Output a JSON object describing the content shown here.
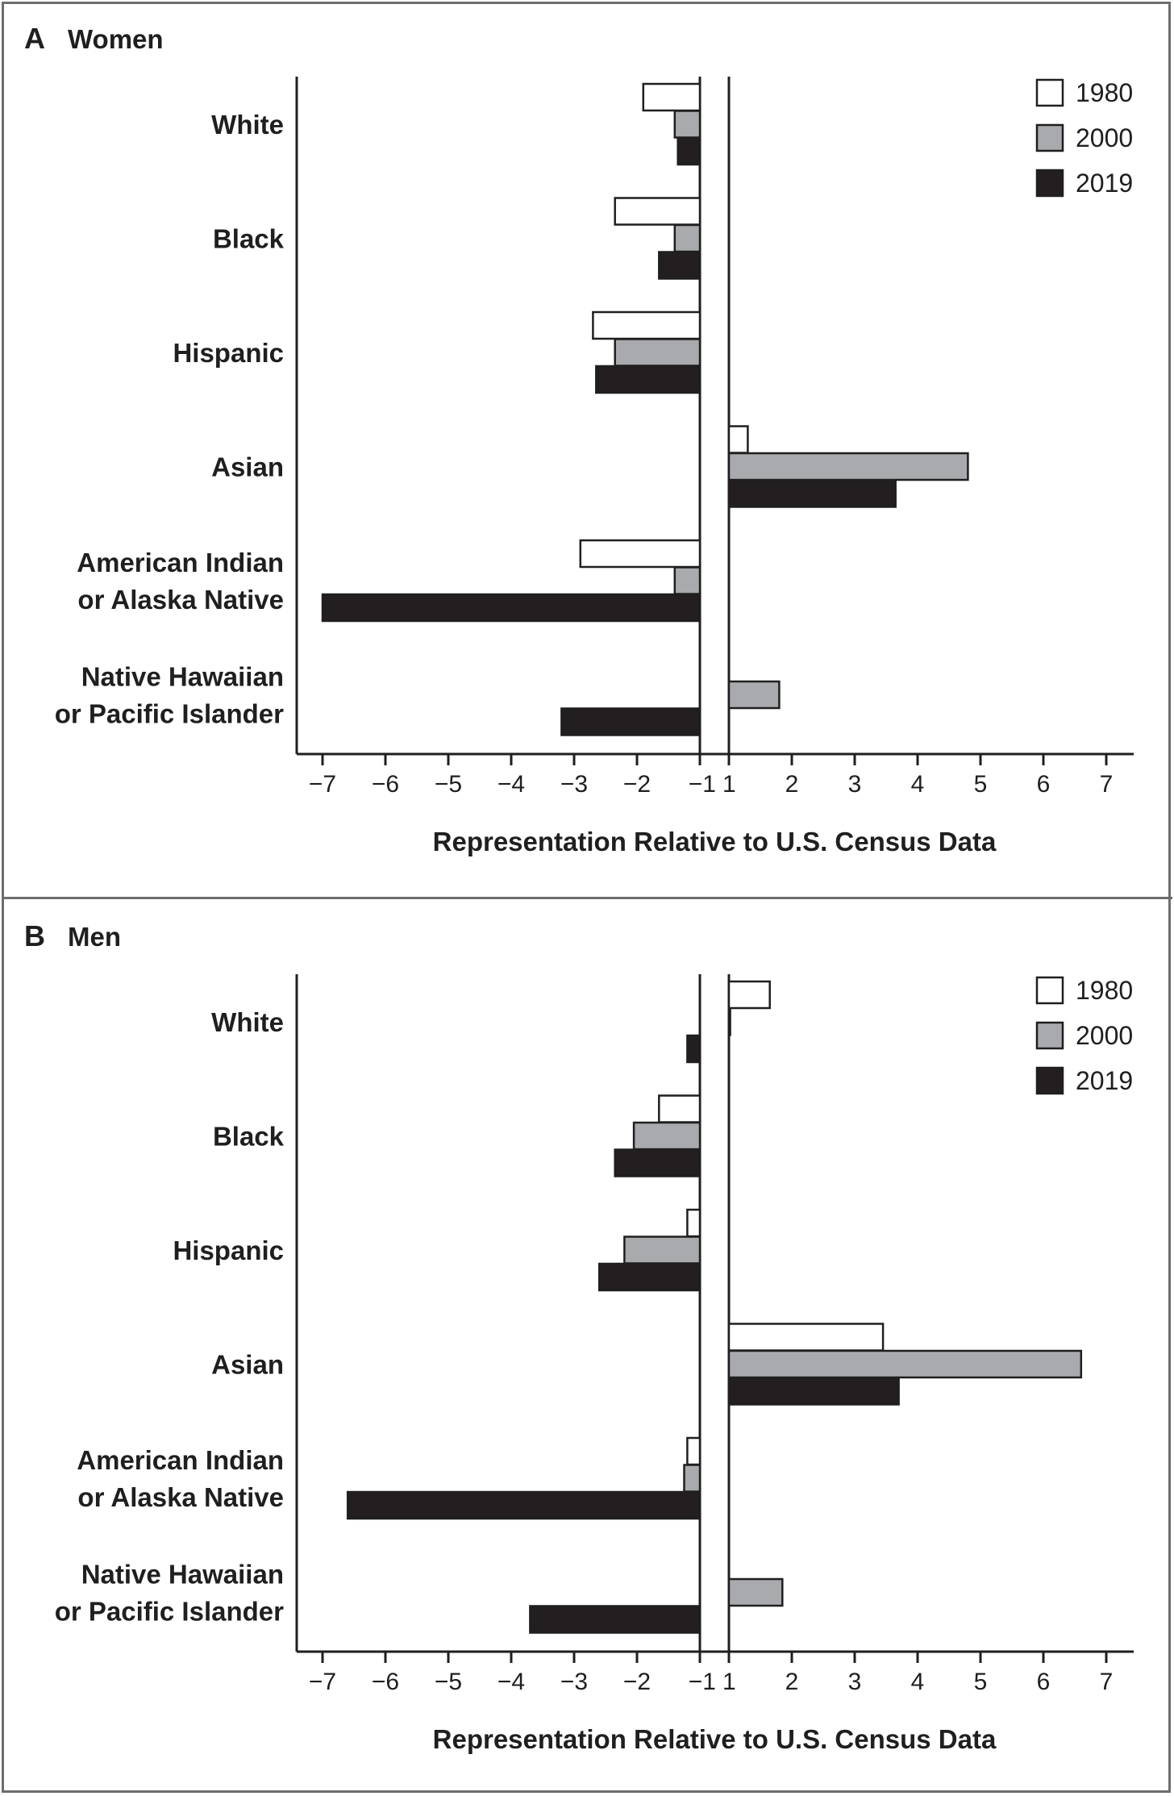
{
  "figure": {
    "panel_a": {
      "letter": "A",
      "title": "Women"
    },
    "panel_b": {
      "letter": "B",
      "title": "Men"
    }
  },
  "chart_data": [
    {
      "type": "bar",
      "orientation": "horizontal",
      "title": "Women",
      "xlabel": "Representation Relative to U.S. Census Data",
      "ylabel": "",
      "xlim": [
        -7,
        7
      ],
      "xticks": [
        "−7",
        "−6",
        "−5",
        "−4",
        "−3",
        "−2",
        "−1",
        "1",
        "2",
        "3",
        "4",
        "5",
        "6",
        "7"
      ],
      "categories": [
        [
          "White"
        ],
        [
          "Black"
        ],
        [
          "Hispanic"
        ],
        [
          "Asian"
        ],
        [
          "American Indian",
          "or Alaska Native"
        ],
        [
          "Native Hawaiian",
          "or Pacific Islander"
        ]
      ],
      "series": [
        {
          "name": "1980",
          "color": "#ffffff",
          "values": [
            -1.9,
            -2.35,
            -2.7,
            1.3,
            -2.9,
            null
          ]
        },
        {
          "name": "2000",
          "color": "#a9aaad",
          "values": [
            -1.4,
            -1.4,
            -2.35,
            4.8,
            -1.4,
            1.8
          ]
        },
        {
          "name": "2019",
          "color": "#231f20",
          "values": [
            -1.35,
            -1.65,
            -2.65,
            3.65,
            -7.0,
            -3.2
          ]
        }
      ],
      "legend": "top-right",
      "grid": false
    },
    {
      "type": "bar",
      "orientation": "horizontal",
      "title": "Men",
      "xlabel": "Representation Relative to U.S. Census Data",
      "ylabel": "",
      "xlim": [
        -7,
        7
      ],
      "xticks": [
        "−7",
        "−6",
        "−5",
        "−4",
        "−3",
        "−2",
        "−1",
        "1",
        "2",
        "3",
        "4",
        "5",
        "6",
        "7"
      ],
      "categories": [
        [
          "White"
        ],
        [
          "Black"
        ],
        [
          "Hispanic"
        ],
        [
          "Asian"
        ],
        [
          "American Indian",
          "or Alaska Native"
        ],
        [
          "Native Hawaiian",
          "or Pacific Islander"
        ]
      ],
      "series": [
        {
          "name": "1980",
          "color": "#ffffff",
          "values": [
            1.65,
            -1.65,
            -1.2,
            3.45,
            -1.2,
            null
          ]
        },
        {
          "name": "2000",
          "color": "#a9aaad",
          "values": [
            1.02,
            -2.05,
            -2.2,
            6.6,
            -1.25,
            1.85
          ]
        },
        {
          "name": "2019",
          "color": "#231f20",
          "values": [
            -1.2,
            -2.35,
            -2.6,
            3.7,
            -6.6,
            -3.7
          ]
        }
      ],
      "legend": "top-right",
      "grid": false
    }
  ]
}
